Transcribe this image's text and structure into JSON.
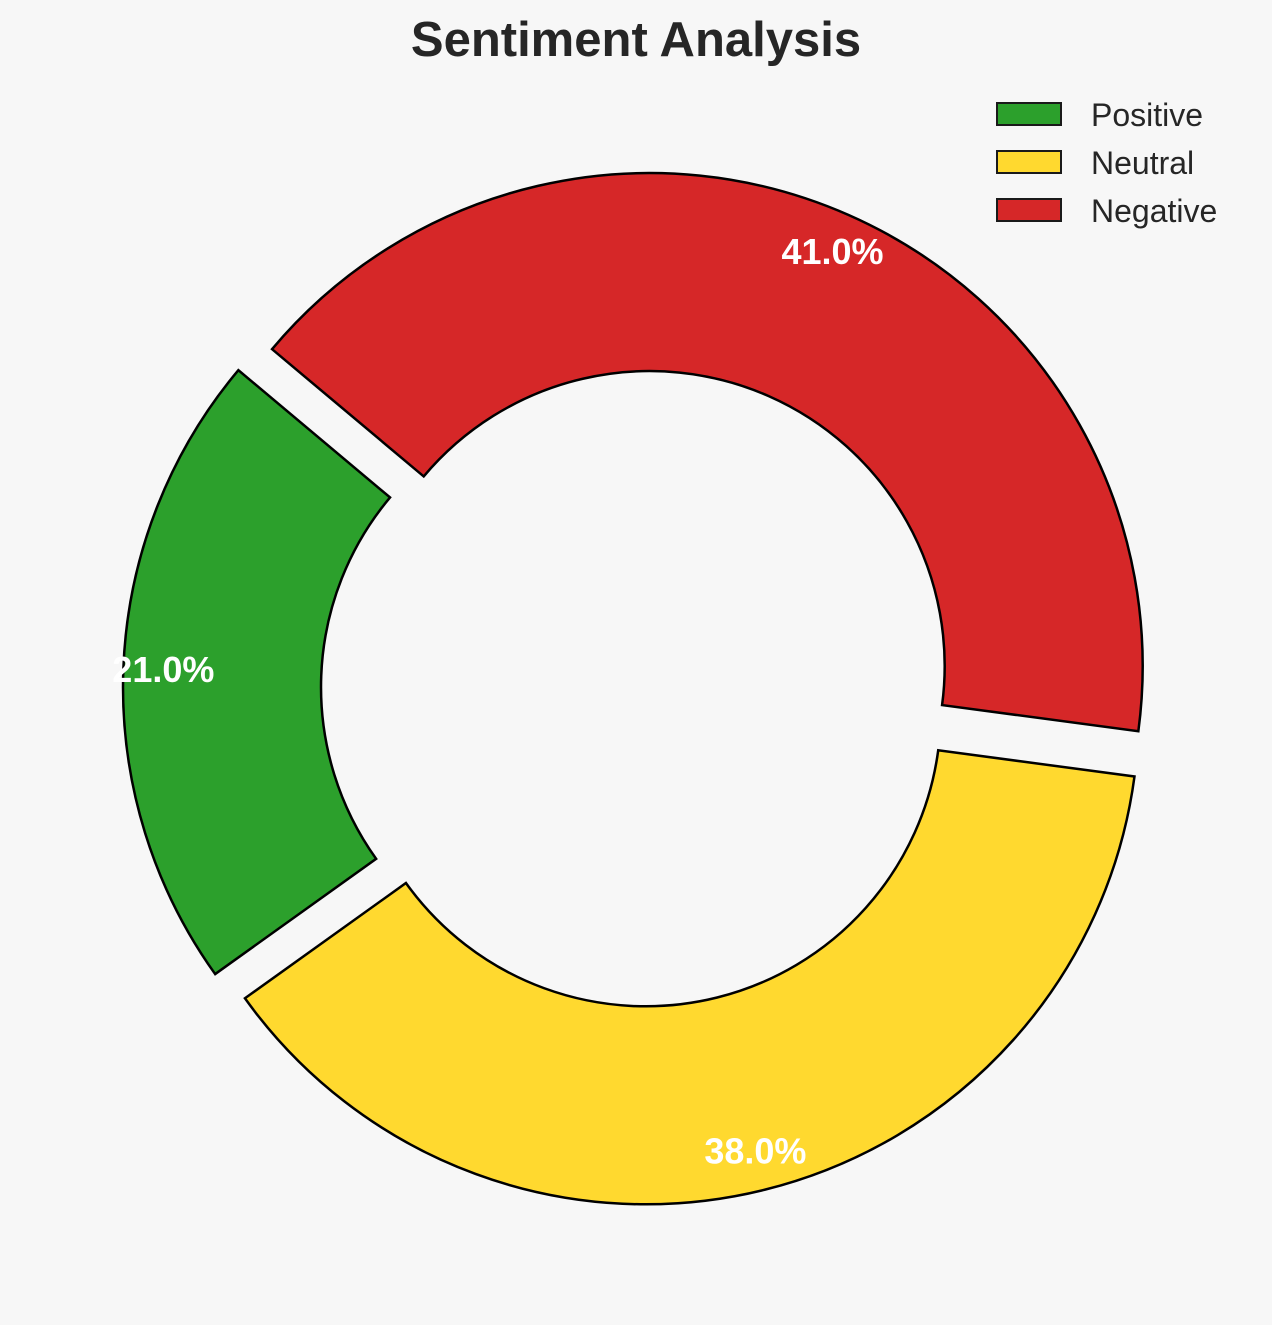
{
  "chart_data": {
    "type": "pie",
    "title": "Sentiment Analysis",
    "donut": true,
    "start_angle_deg": 140,
    "direction": "counterclockwise",
    "exploded": true,
    "show_percent_labels": true,
    "categories": [
      "Positive",
      "Neutral",
      "Negative"
    ],
    "values": [
      21.0,
      38.0,
      41.0
    ],
    "value_labels": [
      "21.0%",
      "38.0%",
      "41.0%"
    ],
    "colors": [
      "#2ca02c",
      "#ffd92f",
      "#d62728"
    ],
    "edge_color": "#000000",
    "label_color": "#ffffff",
    "legend_placement": "top-right",
    "legend": [
      "Positive",
      "Neutral",
      "Negative"
    ]
  }
}
